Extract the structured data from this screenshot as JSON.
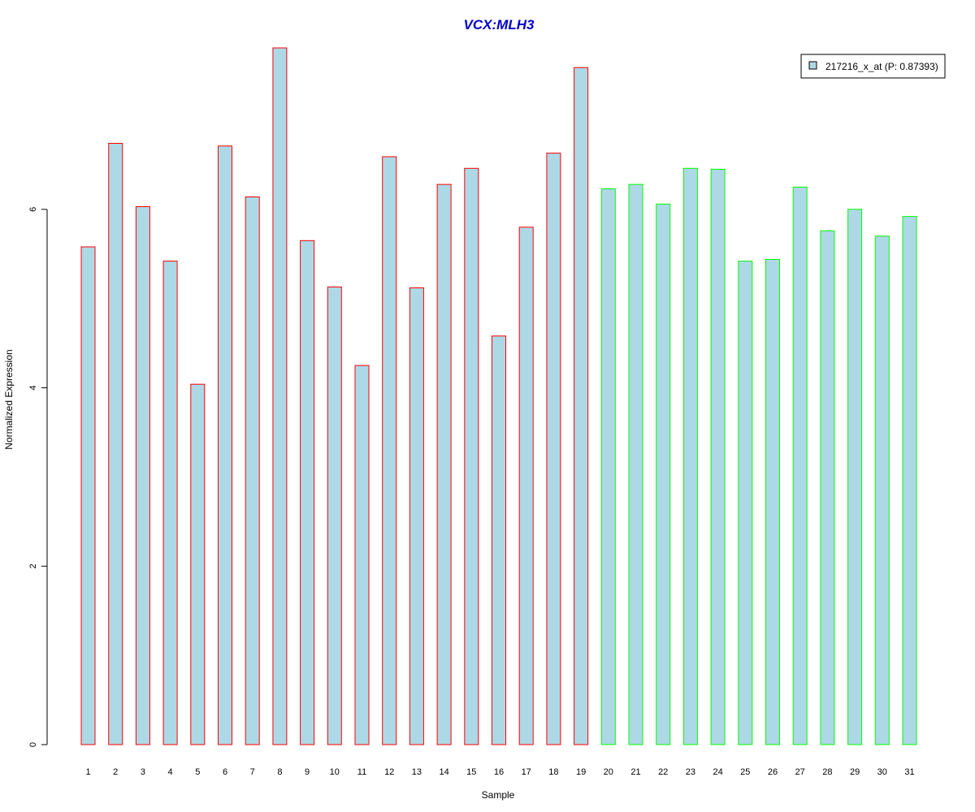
{
  "chart_data": {
    "type": "bar",
    "title": "VCX:MLH3",
    "xlabel": "Sample",
    "ylabel": "Normalized Expression",
    "categories": [
      "1",
      "2",
      "3",
      "4",
      "5",
      "6",
      "7",
      "8",
      "9",
      "10",
      "11",
      "12",
      "13",
      "14",
      "15",
      "16",
      "17",
      "18",
      "19",
      "20",
      "21",
      "22",
      "23",
      "24",
      "25",
      "26",
      "27",
      "28",
      "29",
      "30",
      "31"
    ],
    "series": [
      {
        "name": "217216_x_at (P: 0.87393)",
        "values": [
          5.58,
          6.74,
          6.03,
          5.42,
          4.04,
          6.71,
          6.14,
          7.81,
          5.65,
          5.13,
          4.25,
          6.59,
          5.12,
          6.28,
          6.46,
          4.58,
          5.8,
          6.63,
          7.59,
          6.23,
          6.28,
          6.06,
          6.46,
          6.45,
          5.42,
          5.44,
          6.25,
          5.76,
          6.0,
          5.7,
          5.92
        ],
        "groups": [
          "a",
          "a",
          "a",
          "a",
          "a",
          "a",
          "a",
          "a",
          "a",
          "a",
          "a",
          "a",
          "a",
          "a",
          "a",
          "a",
          "a",
          "a",
          "a",
          "b",
          "b",
          "b",
          "b",
          "b",
          "b",
          "b",
          "b",
          "b",
          "b",
          "b",
          "b"
        ]
      }
    ],
    "ylim": [
      0,
      7.81
    ],
    "yticks": [
      0,
      2,
      4,
      6
    ],
    "grid": false,
    "legend_position": "top-right",
    "colors": {
      "bar_fill": "#add8e6",
      "group_a_border": "#ff0000",
      "group_b_border": "#00ff00",
      "title": "#0000cd",
      "axis": "#000000"
    }
  }
}
